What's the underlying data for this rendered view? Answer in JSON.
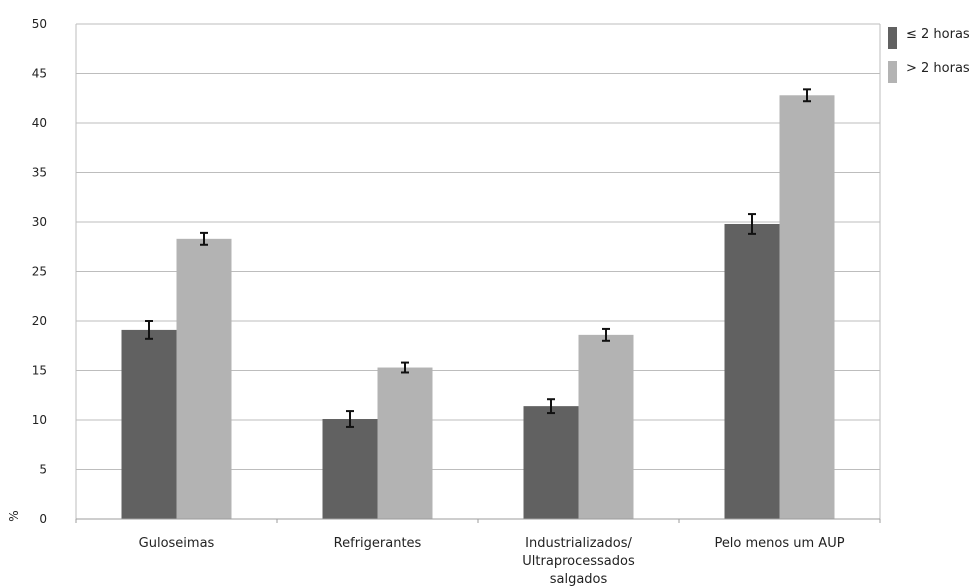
{
  "chart_data": {
    "type": "bar",
    "categories": [
      [
        "Guloseimas"
      ],
      [
        "Refrigerantes"
      ],
      [
        "Industrializados/",
        "Ultraprocessados",
        "salgados"
      ],
      [
        "Pelo menos um AUP"
      ]
    ],
    "series": [
      {
        "name": "≤ 2 horas",
        "color": "#616161",
        "values": [
          19.1,
          10.1,
          11.4,
          29.8
        ],
        "error": [
          0.9,
          0.8,
          0.7,
          1.0
        ]
      },
      {
        "name": "> 2 horas",
        "color": "#b3b3b3",
        "values": [
          28.3,
          15.3,
          18.6,
          42.8
        ],
        "error": [
          0.6,
          0.5,
          0.6,
          0.6
        ]
      }
    ],
    "ylabel": "%",
    "ylim": [
      0,
      50
    ],
    "yticks": [
      0,
      5,
      10,
      15,
      20,
      25,
      30,
      35,
      40,
      45,
      50
    ],
    "grid": true,
    "legend_position": "top-right"
  }
}
